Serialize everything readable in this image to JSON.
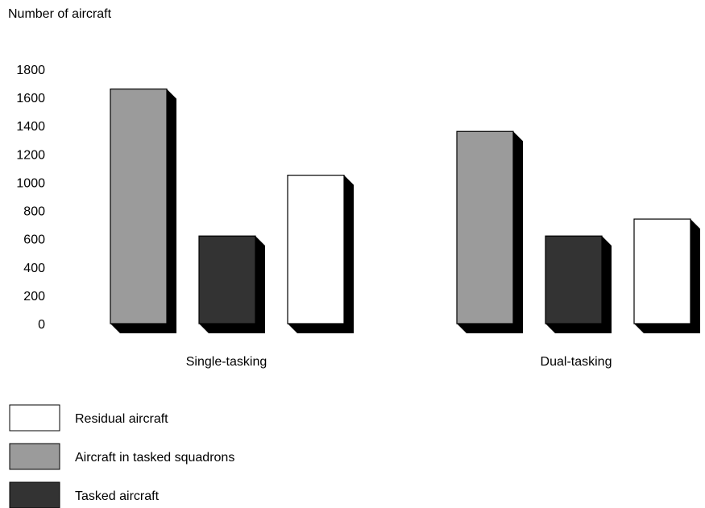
{
  "chart_data": {
    "type": "bar",
    "title": "",
    "ylabel": "Number of aircraft",
    "xlabel": "",
    "ylim": [
      0,
      1800
    ],
    "yticks": [
      0,
      200,
      400,
      600,
      800,
      1000,
      1200,
      1400,
      1600,
      1800
    ],
    "categories": [
      "Single-tasking",
      "Dual-tasking"
    ],
    "series": [
      {
        "name": "Aircraft in tasked squadrons",
        "values": [
          1660,
          1360
        ],
        "color": "#9b9b9b"
      },
      {
        "name": "Tasked aircraft",
        "values": [
          620,
          620
        ],
        "color": "#333333"
      },
      {
        "name": "Residual aircraft",
        "values": [
          1050,
          740
        ],
        "color": "#ffffff"
      }
    ],
    "legend": {
      "placement": "bottom-left",
      "entries": [
        {
          "label": "Residual aircraft",
          "color": "#ffffff"
        },
        {
          "label": "Aircraft in tasked squadrons",
          "color": "#9b9b9b"
        },
        {
          "label": "Tasked aircraft",
          "color": "#333333"
        }
      ]
    },
    "grid": false,
    "style": "3d-shadow"
  }
}
